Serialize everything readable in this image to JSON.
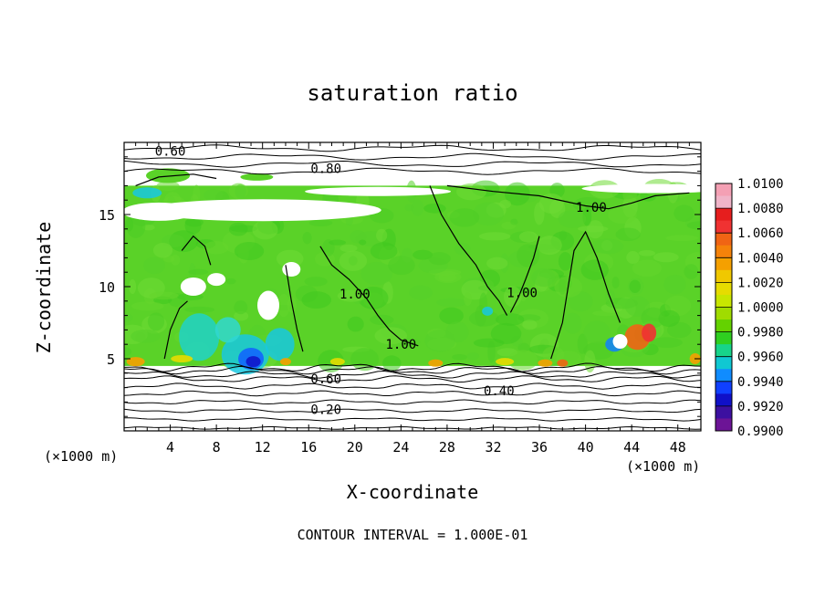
{
  "chart_data": {
    "type": "heatmap",
    "title": "saturation ratio",
    "xlabel": "X-coordinate",
    "ylabel": "Z-coordinate",
    "x_unit": "(×1000 m)",
    "footer": "CONTOUR INTERVAL = 1.000E-01",
    "xlim": [
      0,
      50
    ],
    "ylim": [
      0,
      20
    ],
    "x_ticks": [
      4,
      8,
      12,
      16,
      20,
      24,
      28,
      32,
      36,
      40,
      44,
      48
    ],
    "y_ticks": [
      5,
      10,
      15
    ],
    "colorbar": {
      "min": 0.99,
      "max": 1.01,
      "step": 0.001,
      "labels": [
        "1.0100",
        "1.0080",
        "1.0060",
        "1.0040",
        "1.0020",
        "1.0000",
        "0.9980",
        "0.9960",
        "0.9940",
        "0.9920",
        "0.9900"
      ],
      "colors": [
        "#f4a0b4",
        "#f03232",
        "#f06414",
        "#f5a000",
        "#e6dc00",
        "#a0dc00",
        "#2fcf20",
        "#17d48a",
        "#10c8d2",
        "#108cff",
        "#1040ff",
        "#1010c8",
        "#3c10a0",
        "#6c1496",
        "#f0b4c8",
        "#e61e1e",
        "#f5820a",
        "#f0c800",
        "#c8e600",
        "#64d200"
      ]
    },
    "colored_region": {
      "z_bottom": 4.5,
      "z_top": 17
    },
    "contour_labels": [
      {
        "text": "0.60",
        "x": 4.0,
        "z": 19.4
      },
      {
        "text": "0.80",
        "x": 17.5,
        "z": 18.2
      },
      {
        "text": "1.00",
        "x": 40.5,
        "z": 15.5
      },
      {
        "text": "1.00",
        "x": 20.0,
        "z": 9.5
      },
      {
        "text": "1.00",
        "x": 34.5,
        "z": 9.6
      },
      {
        "text": "1.00",
        "x": 24.0,
        "z": 6.0
      },
      {
        "text": "0.60",
        "x": 17.5,
        "z": 3.6
      },
      {
        "text": "0.40",
        "x": 32.5,
        "z": 2.8
      },
      {
        "text": "0.20",
        "x": 17.5,
        "z": 1.5
      }
    ],
    "stratified_contours_z": [
      0.2,
      0.8,
      1.4,
      2.0,
      2.6,
      3.1,
      3.6,
      3.9,
      4.2,
      4.4
    ],
    "upper_contours_z": [
      18.0,
      18.5,
      19.0,
      19.6
    ]
  }
}
